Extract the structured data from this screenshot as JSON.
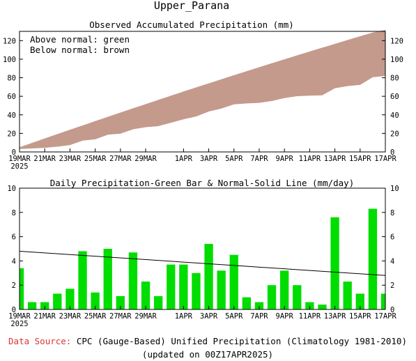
{
  "title": "Upper_Parana",
  "chart_data": [
    {
      "type": "area",
      "title": "Observed Accumulated Precipitation (mm)",
      "annotations": [
        "Above normal: green",
        "Below normal: brown"
      ],
      "colors": {
        "above": "#00cc00",
        "below": "#c49a8c"
      },
      "x": [
        "19MAR",
        "20MAR",
        "21MAR",
        "22MAR",
        "23MAR",
        "24MAR",
        "25MAR",
        "26MAR",
        "27MAR",
        "28MAR",
        "29MAR",
        "30MAR",
        "31MAR",
        "1APR",
        "2APR",
        "3APR",
        "4APR",
        "5APR",
        "6APR",
        "7APR",
        "8APR",
        "9APR",
        "10APR",
        "11APR",
        "12APR",
        "13APR",
        "14APR",
        "15APR",
        "16APR",
        "17APR"
      ],
      "xticks": [
        "19MAR",
        "21MAR",
        "23MAR",
        "25MAR",
        "27MAR",
        "29MAR",
        "1APR",
        "3APR",
        "5APR",
        "7APR",
        "9APR",
        "11APR",
        "13APR",
        "15APR",
        "17APR"
      ],
      "xtick_year": "2025",
      "series": [
        {
          "name": "Observed",
          "values": [
            3.4,
            4.0,
            4.6,
            5.9,
            7.6,
            12.4,
            13.8,
            18.8,
            19.9,
            24.6,
            26.9,
            28.0,
            31.7,
            35.4,
            38.4,
            43.8,
            47.0,
            51.5,
            52.5,
            53.1,
            55.1,
            58.3,
            60.3,
            60.9,
            61.3,
            68.9,
            71.2,
            72.5,
            80.8,
            82.1
          ]
        },
        {
          "name": "Normal",
          "values": [
            4.8,
            9.5,
            14.3,
            19.0,
            23.7,
            28.3,
            33.0,
            37.6,
            42.2,
            46.8,
            51.3,
            55.9,
            60.4,
            64.9,
            69.3,
            73.7,
            78.1,
            82.5,
            86.8,
            91.1,
            95.4,
            99.6,
            103.9,
            108.0,
            112.2,
            116.3,
            120.4,
            124.5,
            128.5,
            131.3
          ]
        }
      ],
      "ylim": [
        0,
        130
      ],
      "yticks": [
        0,
        20,
        40,
        60,
        80,
        100,
        120
      ]
    },
    {
      "type": "bar",
      "title": "Daily Precipitation-Green Bar & Normal-Solid Line (mm/day)",
      "colors": {
        "bar": "#00dd00",
        "line": "#000000"
      },
      "categories": [
        "19MAR",
        "20MAR",
        "21MAR",
        "22MAR",
        "23MAR",
        "24MAR",
        "25MAR",
        "26MAR",
        "27MAR",
        "28MAR",
        "29MAR",
        "30MAR",
        "31MAR",
        "1APR",
        "2APR",
        "3APR",
        "4APR",
        "5APR",
        "6APR",
        "7APR",
        "8APR",
        "9APR",
        "10APR",
        "11APR",
        "12APR",
        "13APR",
        "14APR",
        "15APR",
        "16APR",
        "17APR"
      ],
      "xticks": [
        "19MAR",
        "21MAR",
        "23MAR",
        "25MAR",
        "27MAR",
        "29MAR",
        "1APR",
        "3APR",
        "5APR",
        "7APR",
        "9APR",
        "11APR",
        "13APR",
        "15APR",
        "17APR"
      ],
      "xtick_year": "2025",
      "series": [
        {
          "name": "Observed",
          "values": [
            3.4,
            0.6,
            0.6,
            1.3,
            1.7,
            4.8,
            1.4,
            5.0,
            1.1,
            4.7,
            2.3,
            1.1,
            3.7,
            3.7,
            3.0,
            5.4,
            3.2,
            4.5,
            1.0,
            0.6,
            2.0,
            3.2,
            2.0,
            0.6,
            0.4,
            7.6,
            2.3,
            1.3,
            8.3,
            1.3
          ]
        }
      ],
      "normal_line": {
        "start": 4.8,
        "end": 2.8
      },
      "ylim": [
        0,
        10
      ],
      "yticks": [
        0,
        2,
        4,
        6,
        8,
        10
      ]
    }
  ],
  "footer": {
    "source_label": "Data Source:",
    "source_text": "CPC (Gauge-Based) Unified Precipitation (Climatology 1981-2010)",
    "updated": "(updated on 00Z17APR2025)",
    "source_label_color": "#dd3333"
  }
}
